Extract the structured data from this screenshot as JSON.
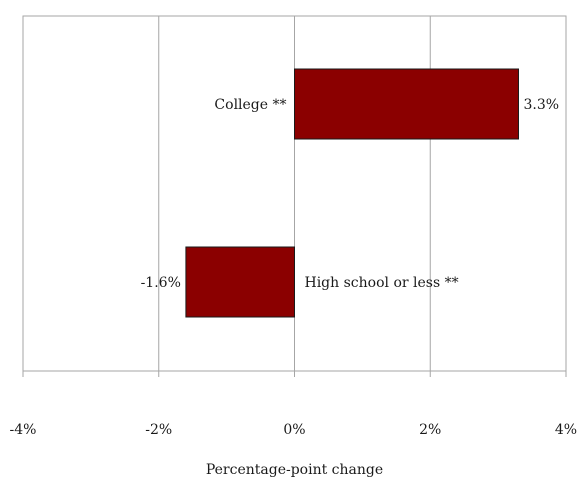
{
  "chart_data": {
    "type": "bar",
    "orientation": "horizontal",
    "categories": [
      "College **",
      "High school or less **"
    ],
    "values": [
      3.3,
      -1.6
    ],
    "value_labels": [
      "3.3%",
      "-1.6%"
    ],
    "title": "",
    "xlabel": "Percentage-point change",
    "ylabel": "",
    "xlim": [
      -4,
      4
    ],
    "x_ticks": [
      -4,
      -2,
      0,
      2,
      4
    ],
    "x_tick_labels": [
      "-4%",
      "-2%",
      "0%",
      "2%",
      "4%"
    ],
    "grid": "vertical",
    "legend": "none",
    "bar_color": "#8b0000",
    "bar_edge_color": "#1a1a1a",
    "grid_color": "#a6a6a6"
  }
}
